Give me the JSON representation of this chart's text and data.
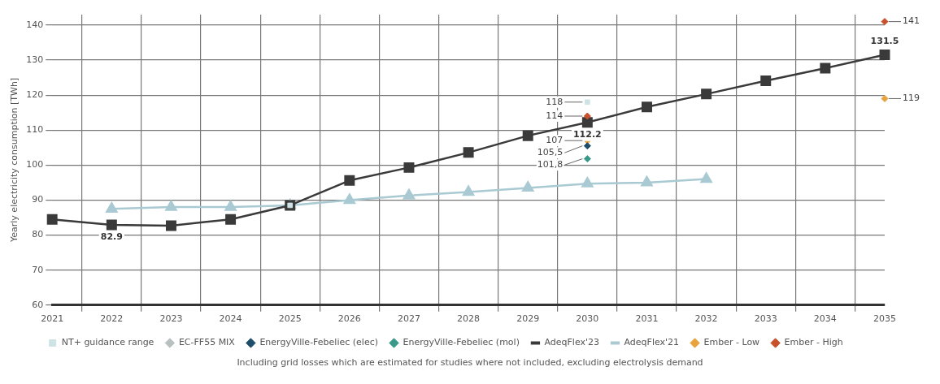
{
  "chart_data": {
    "type": "line",
    "ylabel": "Yearly electricity consumption [TWh]",
    "categories": [
      "2021",
      "2022",
      "2023",
      "2024",
      "2025",
      "2026",
      "2027",
      "2028",
      "2029",
      "2030",
      "2031",
      "2032",
      "2033",
      "2034",
      "2035"
    ],
    "ylim": [
      60,
      143
    ],
    "yticks": [
      60,
      70,
      80,
      90,
      100,
      110,
      120,
      130,
      140
    ],
    "grid": true,
    "legend": "bottom",
    "annotations": [
      "Including grid losses which are estimated for studies where not included, excluding electrolysis demand"
    ],
    "series": [
      {
        "name": "NT+ guidance range",
        "type": "scatter",
        "marker": "square",
        "color": "#cfe3e6",
        "values": [
          null,
          null,
          null,
          null,
          88.5,
          null,
          null,
          null,
          null,
          118,
          null,
          null,
          null,
          null,
          null
        ],
        "value_labels": [
          null,
          null,
          null,
          null,
          null,
          null,
          null,
          null,
          null,
          "118",
          null,
          null,
          null,
          null,
          null
        ]
      },
      {
        "name": "EC-FF55 MIX",
        "type": "scatter",
        "marker": "diamond",
        "color": "#b8c0c2",
        "values": [
          null,
          null,
          null,
          null,
          null,
          null,
          null,
          null,
          null,
          null,
          null,
          null,
          null,
          null,
          null
        ]
      },
      {
        "name": "EnergyVille-Febeliec (elec)",
        "type": "scatter",
        "marker": "diamond",
        "color": "#1f4e6b",
        "values": [
          null,
          null,
          null,
          null,
          null,
          null,
          null,
          null,
          null,
          105.5,
          null,
          null,
          null,
          null,
          null
        ],
        "value_labels": [
          null,
          null,
          null,
          null,
          null,
          null,
          null,
          null,
          null,
          "105,5",
          null,
          null,
          null,
          null,
          null
        ]
      },
      {
        "name": "EnergyVille-Febeliec (mol)",
        "type": "scatter",
        "marker": "diamond",
        "color": "#3a9a8a",
        "values": [
          null,
          null,
          null,
          null,
          null,
          null,
          null,
          null,
          null,
          101.8,
          null,
          null,
          null,
          null,
          null
        ],
        "value_labels": [
          null,
          null,
          null,
          null,
          null,
          null,
          null,
          null,
          null,
          "101,8",
          null,
          null,
          null,
          null,
          null
        ]
      },
      {
        "name": "AdeqFlex'23",
        "type": "line",
        "marker": "square",
        "color": "#3a3a3a",
        "values": [
          84.5,
          82.9,
          82.7,
          84.5,
          88.5,
          95.6,
          99.3,
          103.6,
          108.4,
          112.2,
          116.6,
          120.3,
          124.1,
          127.7,
          131.5
        ],
        "value_labels": [
          null,
          "82.9",
          null,
          null,
          null,
          null,
          null,
          null,
          null,
          "112.2",
          null,
          null,
          null,
          null,
          "131.5"
        ]
      },
      {
        "name": "AdeqFlex'21",
        "type": "line",
        "marker": "triangle",
        "color": "#a9c9d3",
        "values": [
          null,
          87.5,
          88,
          88,
          88.5,
          90,
          91.3,
          92.3,
          93.5,
          94.7,
          95,
          96,
          null,
          null,
          null
        ]
      },
      {
        "name": "Ember - Low",
        "type": "scatter",
        "marker": "diamond",
        "color": "#e8a33d",
        "values": [
          null,
          null,
          null,
          null,
          null,
          null,
          null,
          null,
          null,
          107,
          null,
          null,
          null,
          null,
          119
        ],
        "value_labels": [
          null,
          null,
          null,
          null,
          null,
          null,
          null,
          null,
          null,
          "107",
          null,
          null,
          null,
          null,
          "119"
        ]
      },
      {
        "name": "Ember - High",
        "type": "scatter",
        "marker": "diamond",
        "color": "#c8502a",
        "values": [
          null,
          null,
          null,
          null,
          null,
          null,
          null,
          null,
          null,
          114,
          null,
          null,
          null,
          null,
          141
        ],
        "value_labels": [
          null,
          null,
          null,
          null,
          null,
          null,
          null,
          null,
          null,
          "114",
          null,
          null,
          null,
          null,
          "141"
        ]
      }
    ]
  }
}
